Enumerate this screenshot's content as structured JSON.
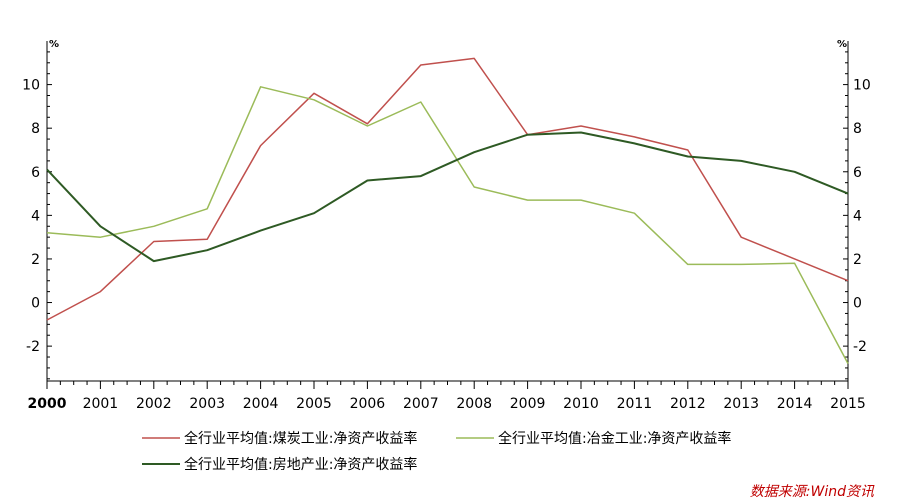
{
  "chart_data": {
    "type": "line",
    "x": [
      "2000",
      "2001",
      "2002",
      "2003",
      "2004",
      "2005",
      "2006",
      "2007",
      "2008",
      "2009",
      "2010",
      "2011",
      "2012",
      "2013",
      "2014",
      "2015"
    ],
    "series": [
      {
        "name": "全行业平均值:煤炭工业:净资产收益率",
        "color": "#c0504d",
        "values": [
          -0.8,
          0.5,
          2.8,
          2.9,
          7.2,
          9.6,
          8.2,
          10.9,
          11.2,
          7.7,
          8.1,
          7.6,
          7.0,
          3.0,
          2.0,
          1.0
        ]
      },
      {
        "name": "全行业平均值:冶金工业:净资产收益率",
        "color": "#9bbb59",
        "values": [
          3.2,
          3.0,
          3.5,
          4.3,
          9.9,
          9.3,
          8.1,
          9.2,
          5.3,
          4.7,
          4.7,
          4.1,
          1.75,
          1.75,
          1.8,
          -2.8
        ]
      },
      {
        "name": "全行业平均值:房地产业:净资产收益率",
        "color": "#2e5a24",
        "values": [
          6.1,
          3.5,
          1.9,
          2.4,
          3.3,
          4.1,
          5.6,
          5.8,
          6.9,
          7.7,
          7.8,
          7.3,
          6.7,
          6.5,
          6.0,
          5.0
        ]
      }
    ],
    "ylim": [
      -3.6,
      12
    ],
    "y_ticks": [
      -2,
      0,
      2,
      4,
      6,
      8,
      10
    ],
    "y_ticks_label": [
      "-2",
      "0",
      "2",
      "4",
      "6",
      "8",
      "10"
    ],
    "left_unit": "%",
    "right_unit": "%",
    "legend_position": "bottom",
    "grid": false
  },
  "source": "数据来源:Wind资讯",
  "source_color": "#c00000"
}
